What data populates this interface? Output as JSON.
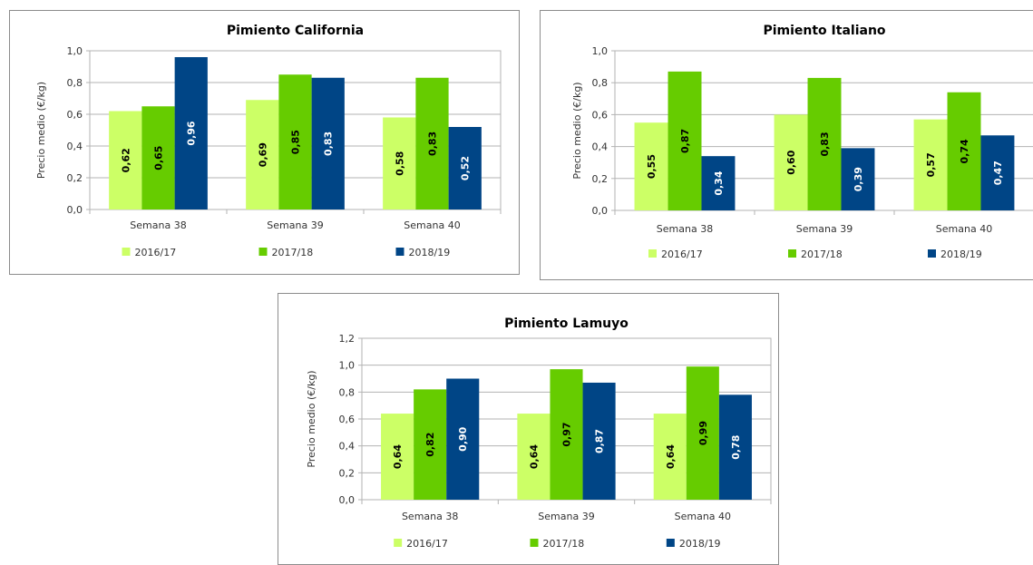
{
  "chart_data": [
    {
      "type": "bar",
      "title": "Pimiento California",
      "ylabel": "Precio medio (€/kg)",
      "xlabel": "",
      "categories": [
        "Semana 38",
        "Semana 39",
        "Semana 40"
      ],
      "ylim": [
        0,
        1.0
      ],
      "yticks": [
        "0,0",
        "0,2",
        "0,4",
        "0,6",
        "0,8",
        "1,0"
      ],
      "series": [
        {
          "name": "2016/17",
          "values": [
            0.62,
            0.69,
            0.58
          ],
          "labels": [
            "0,62",
            "0,69",
            "0,58"
          ],
          "color": "#ccff66"
        },
        {
          "name": "2017/18",
          "values": [
            0.65,
            0.85,
            0.83
          ],
          "labels": [
            "0,65",
            "0,85",
            "0,83"
          ],
          "color": "#66cc00"
        },
        {
          "name": "2018/19",
          "values": [
            0.96,
            0.83,
            0.52
          ],
          "labels": [
            "0,96",
            "0,83",
            "0,52"
          ],
          "color": "#004586"
        }
      ],
      "grid": true,
      "legend": "bottom"
    },
    {
      "type": "bar",
      "title": "Pimiento Italiano",
      "ylabel": "Precio medio (€/kg)",
      "xlabel": "",
      "categories": [
        "Semana 38",
        "Semana 39",
        "Semana 40"
      ],
      "ylim": [
        0,
        1.0
      ],
      "yticks": [
        "0,0",
        "0,2",
        "0,4",
        "0,6",
        "0,8",
        "1,0"
      ],
      "series": [
        {
          "name": "2016/17",
          "values": [
            0.55,
            0.6,
            0.57
          ],
          "labels": [
            "0,55",
            "0,60",
            "0,57"
          ],
          "color": "#ccff66"
        },
        {
          "name": "2017/18",
          "values": [
            0.87,
            0.83,
            0.74
          ],
          "labels": [
            "0,87",
            "0,83",
            "0,74"
          ],
          "color": "#66cc00"
        },
        {
          "name": "2018/19",
          "values": [
            0.34,
            0.39,
            0.47
          ],
          "labels": [
            "0,34",
            "0,39",
            "0,47"
          ],
          "color": "#004586"
        }
      ],
      "grid": true,
      "legend": "bottom"
    },
    {
      "type": "bar",
      "title": "Pimiento Lamuyo",
      "ylabel": "Precio medio (€/kg)",
      "xlabel": "",
      "categories": [
        "Semana 38",
        "Semana 39",
        "Semana 40"
      ],
      "ylim": [
        0,
        1.2
      ],
      "yticks": [
        "0,0",
        "0,2",
        "0,4",
        "0,6",
        "0,8",
        "1,0",
        "1,2"
      ],
      "series": [
        {
          "name": "2016/17",
          "values": [
            0.64,
            0.64,
            0.64
          ],
          "labels": [
            "0,64",
            "0,64",
            "0,64"
          ],
          "color": "#ccff66"
        },
        {
          "name": "2017/18",
          "values": [
            0.82,
            0.97,
            0.99
          ],
          "labels": [
            "0,82",
            "0,97",
            "0,99"
          ],
          "color": "#66cc00"
        },
        {
          "name": "2018/19",
          "values": [
            0.9,
            0.87,
            0.78
          ],
          "labels": [
            "0,90",
            "0,87",
            "0,78"
          ],
          "color": "#004586"
        }
      ],
      "grid": true,
      "legend": "bottom"
    }
  ]
}
